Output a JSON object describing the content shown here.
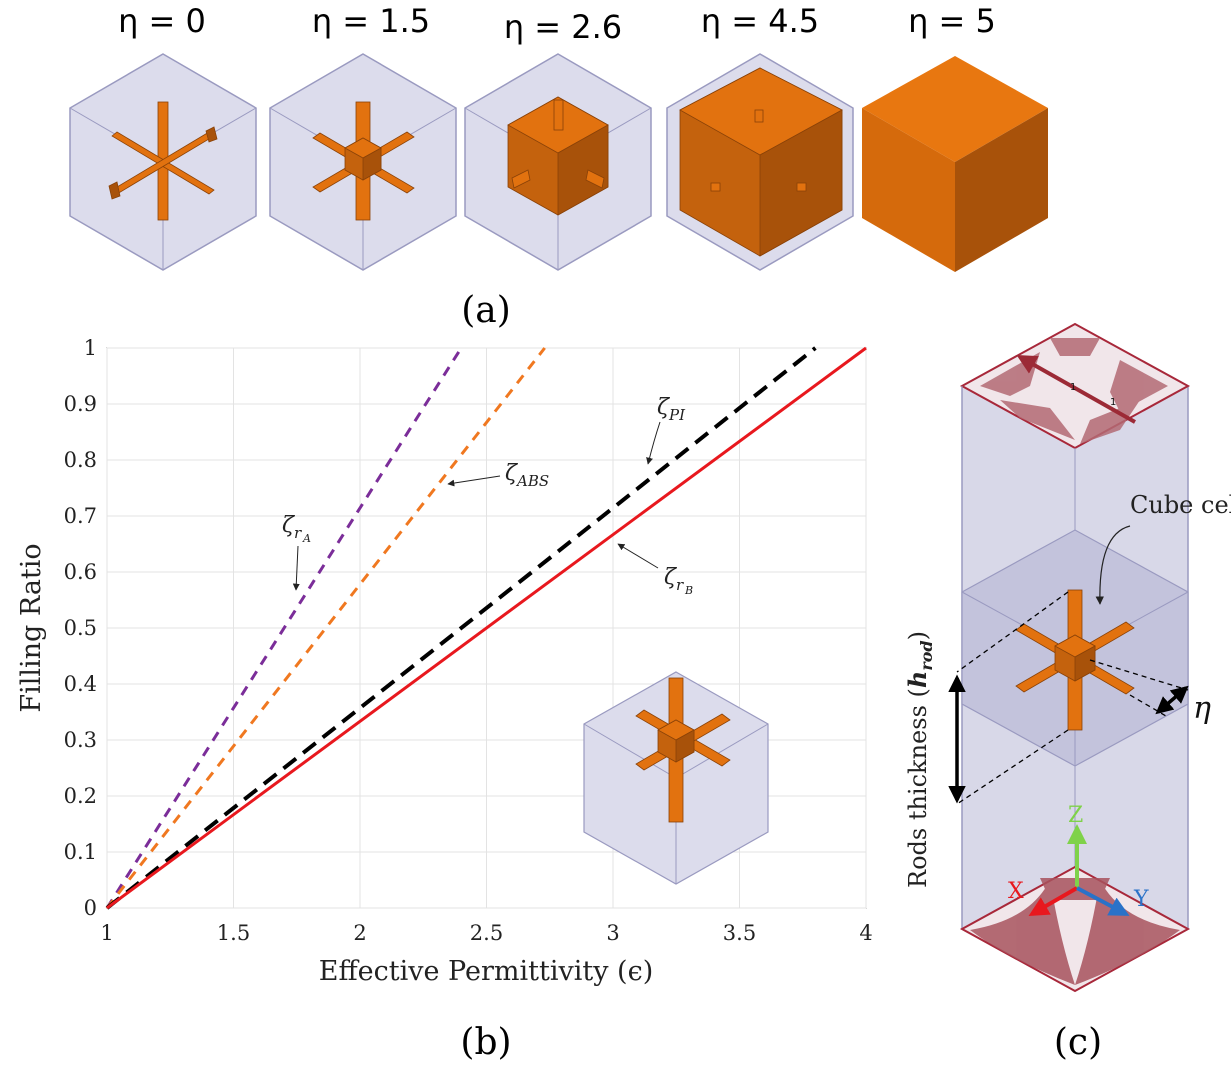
{
  "panel_a": {
    "label": "(a)",
    "cells": [
      {
        "eta_label": "η = 0",
        "eta": 0
      },
      {
        "eta_label": "η = 1.5",
        "eta": 1.5
      },
      {
        "eta_label": "η = 2.6",
        "eta": 2.6
      },
      {
        "eta_label": "η = 4.5",
        "eta": 4.5
      },
      {
        "eta_label": "η = 5",
        "eta": 5
      }
    ]
  },
  "panel_b": {
    "label": "(b)"
  },
  "panel_c": {
    "label": "(c)",
    "cube_cell_label": "Cube cell",
    "rods_label_prefix": "Rods thickness (",
    "rods_label_sym": "h",
    "rods_label_sub": "rod",
    "rods_label_suffix": ")",
    "eta_symbol": "η",
    "axis_x": "X",
    "axis_y": "Y",
    "axis_z": "Z",
    "top_mark_1": "1",
    "top_mark_2": "1"
  },
  "colors": {
    "orange": "#e2720f",
    "orange_dark": "#a8520a",
    "orange_mid": "#c4620d",
    "box_face": "#d9d9ea",
    "box_edge": "#9a9ac0",
    "purple": "#7b2d99",
    "dashed_orange": "#f07820",
    "black": "#000000",
    "red": "#e8181e",
    "maroon": "#9c2a36"
  },
  "chart_data": {
    "type": "line",
    "xlabel": "Effective Permittivity (ϵ)",
    "ylabel": "Filling Ratio",
    "xlim": [
      1,
      4
    ],
    "ylim": [
      0,
      1
    ],
    "grid": true,
    "xticks": [
      "1",
      "1.5",
      "2",
      "2.5",
      "3",
      "3.5",
      "4"
    ],
    "yticks": [
      "0",
      "0.1",
      "0.2",
      "0.3",
      "0.4",
      "0.5",
      "0.6",
      "0.7",
      "0.8",
      "0.9",
      "1"
    ],
    "series": [
      {
        "id": "zeta_rA",
        "color": "#7b2d99",
        "style": "dashed",
        "x": [
          1,
          2.4
        ],
        "y": [
          0,
          1
        ]
      },
      {
        "id": "zeta_ABS",
        "color": "#f07820",
        "style": "dashed",
        "x": [
          1,
          2.73
        ],
        "y": [
          0,
          1
        ]
      },
      {
        "id": "zeta_PI",
        "color": "#000000",
        "style": "dashed",
        "x": [
          1,
          3.8
        ],
        "y": [
          0,
          1
        ]
      },
      {
        "id": "zeta_rB",
        "color": "#e8181e",
        "style": "solid",
        "x": [
          1,
          4
        ],
        "y": [
          0,
          1
        ]
      }
    ],
    "annotations": [
      {
        "symbol": "ζ",
        "sub": "r",
        "subsub": "A"
      },
      {
        "symbol": "ζ",
        "sub": "ABS",
        "subsub": ""
      },
      {
        "symbol": "ζ",
        "sub": "PI",
        "subsub": ""
      },
      {
        "symbol": "ζ",
        "sub": "r",
        "subsub": "B"
      }
    ]
  }
}
